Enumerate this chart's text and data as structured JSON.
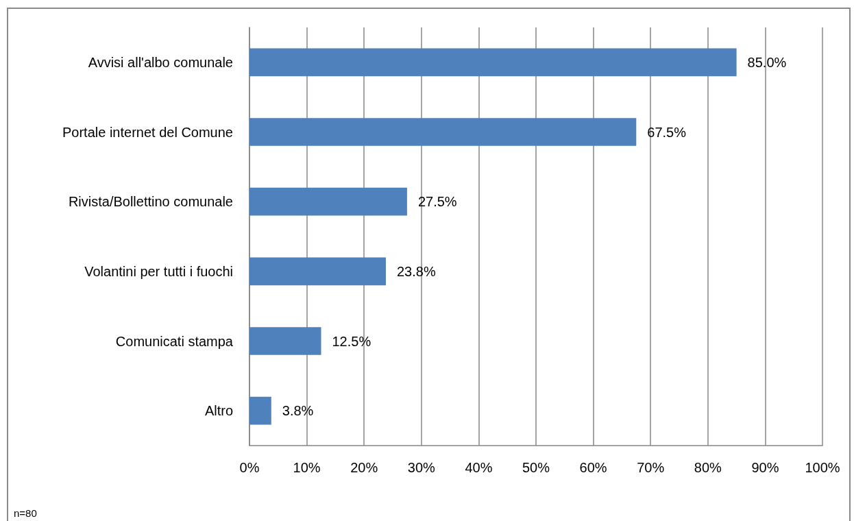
{
  "chart_data": {
    "type": "bar",
    "orientation": "horizontal",
    "categories": [
      "Avvisi all'albo comunale",
      "Portale internet del Comune",
      "Rivista/Bollettino comunale",
      "Volantini per tutti i fuochi",
      "Comunicati stampa",
      "Altro"
    ],
    "values": [
      85.0,
      67.5,
      27.5,
      23.8,
      12.5,
      3.8
    ],
    "value_labels": [
      "85.0%",
      "67.5%",
      "27.5%",
      "23.8%",
      "12.5%",
      "3.8%"
    ],
    "color": "#4f81bd",
    "xlim": [
      0,
      100
    ],
    "xticks": [
      {
        "value": 0,
        "label": "0%"
      },
      {
        "value": 10,
        "label": "10%"
      },
      {
        "value": 20,
        "label": "20%"
      },
      {
        "value": 30,
        "label": "30%"
      },
      {
        "value": 40,
        "label": "40%"
      },
      {
        "value": 50,
        "label": "50%"
      },
      {
        "value": 60,
        "label": "60%"
      },
      {
        "value": 70,
        "label": "70%"
      },
      {
        "value": 80,
        "label": "80%"
      },
      {
        "value": 90,
        "label": "90%"
      },
      {
        "value": 100,
        "label": "100%"
      }
    ],
    "grid": "x",
    "annotations": [
      "n=80"
    ]
  }
}
